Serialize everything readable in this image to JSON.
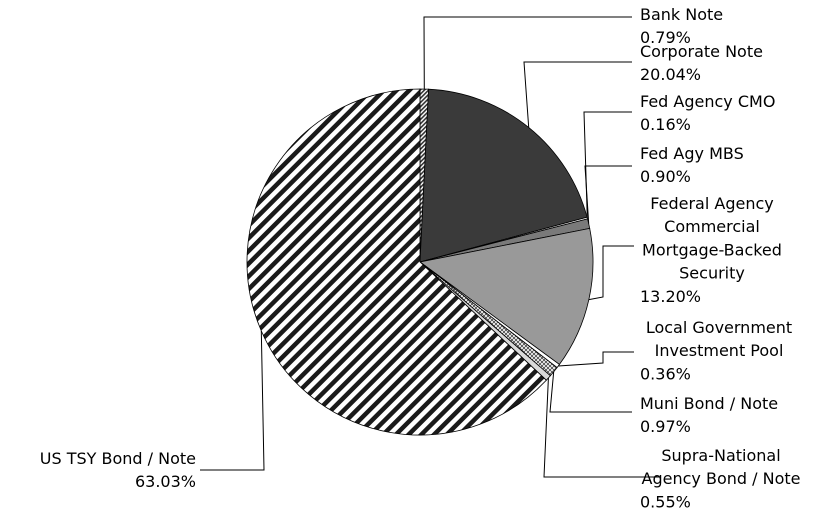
{
  "chart_data": {
    "type": "pie",
    "title": "",
    "slices": [
      {
        "label_lines": [
          "Bank Note"
        ],
        "value_label": "0.79%",
        "value": 0.79,
        "fill": "hatch-fine-dark"
      },
      {
        "label_lines": [
          "Corporate Note"
        ],
        "value_label": "20.04%",
        "value": 20.04,
        "fill": "#3a3a3a"
      },
      {
        "label_lines": [
          "Fed Agency CMO"
        ],
        "value_label": "0.16%",
        "value": 0.16,
        "fill": "#ffffff"
      },
      {
        "label_lines": [
          "Fed Agy MBS"
        ],
        "value_label": "0.90%",
        "value": 0.9,
        "fill": "#7a7a7a"
      },
      {
        "label_lines": [
          "Federal Agency",
          "Commercial",
          "Mortgage-Backed",
          "Security"
        ],
        "value_label": "13.20%",
        "value": 13.2,
        "fill": "#999999"
      },
      {
        "label_lines": [
          "Local Government",
          "Investment Pool"
        ],
        "value_label": "0.36%",
        "value": 0.36,
        "fill": "#ffffff"
      },
      {
        "label_lines": [
          "Muni Bond / Note"
        ],
        "value_label": "0.97%",
        "value": 0.97,
        "fill": "hatch-grid"
      },
      {
        "label_lines": [
          "Supra-National",
          "Agency Bond / Note"
        ],
        "value_label": "0.55%",
        "value": 0.55,
        "fill": "#d9d9d9"
      },
      {
        "label_lines": [
          "US TSY Bond / Note"
        ],
        "value_label": "63.03%",
        "value": 63.03,
        "fill": "hatch-diag"
      }
    ]
  }
}
